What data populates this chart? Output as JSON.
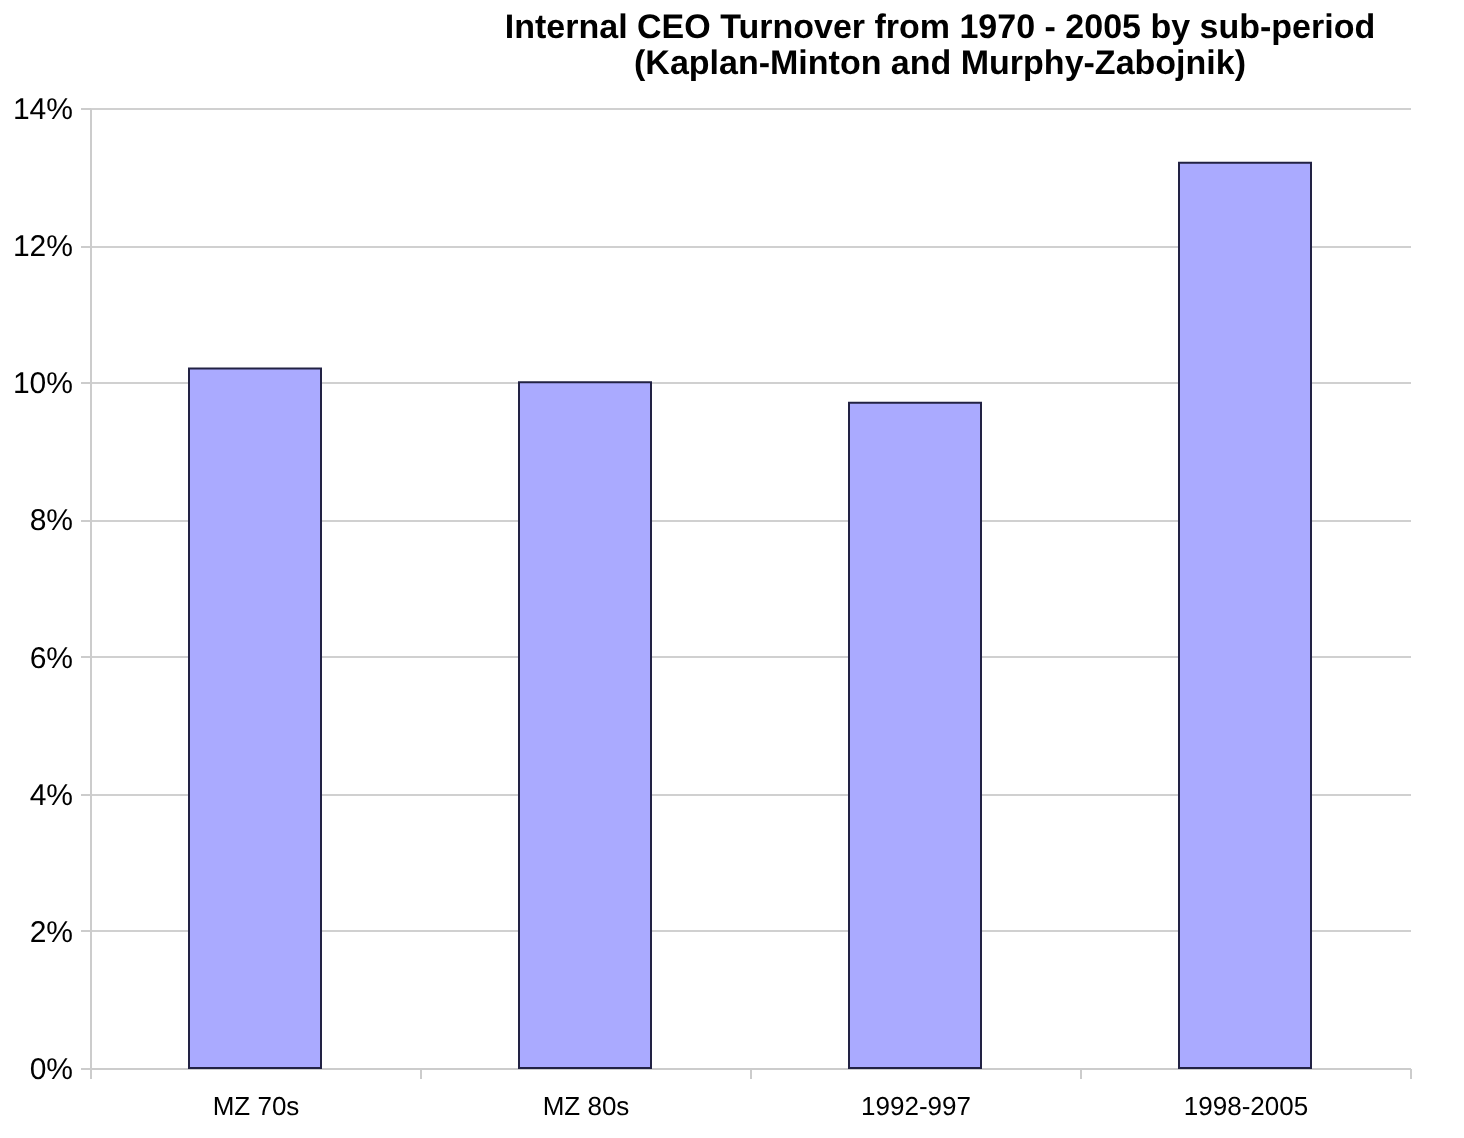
{
  "chart_data": {
    "type": "bar",
    "title": "Internal CEO Turnover from 1970 - 2005 by sub-period",
    "subtitle": "(Kaplan-Minton and Murphy-Zabojnik)",
    "categories": [
      "MZ 70s",
      "MZ 80s",
      "1992-997",
      "1998-2005"
    ],
    "values": [
      10.2,
      10.0,
      9.7,
      13.2
    ],
    "color": "#aaaaff",
    "ylim": [
      0,
      14
    ],
    "yticks": [
      {
        "value": 0,
        "label": "0%"
      },
      {
        "value": 2,
        "label": "2%"
      },
      {
        "value": 4,
        "label": "4%"
      },
      {
        "value": 6,
        "label": "6%"
      },
      {
        "value": 8,
        "label": "8%"
      },
      {
        "value": 10,
        "label": "10%"
      },
      {
        "value": 12,
        "label": "12%"
      },
      {
        "value": 14,
        "label": "14%"
      }
    ],
    "grid": "y"
  }
}
